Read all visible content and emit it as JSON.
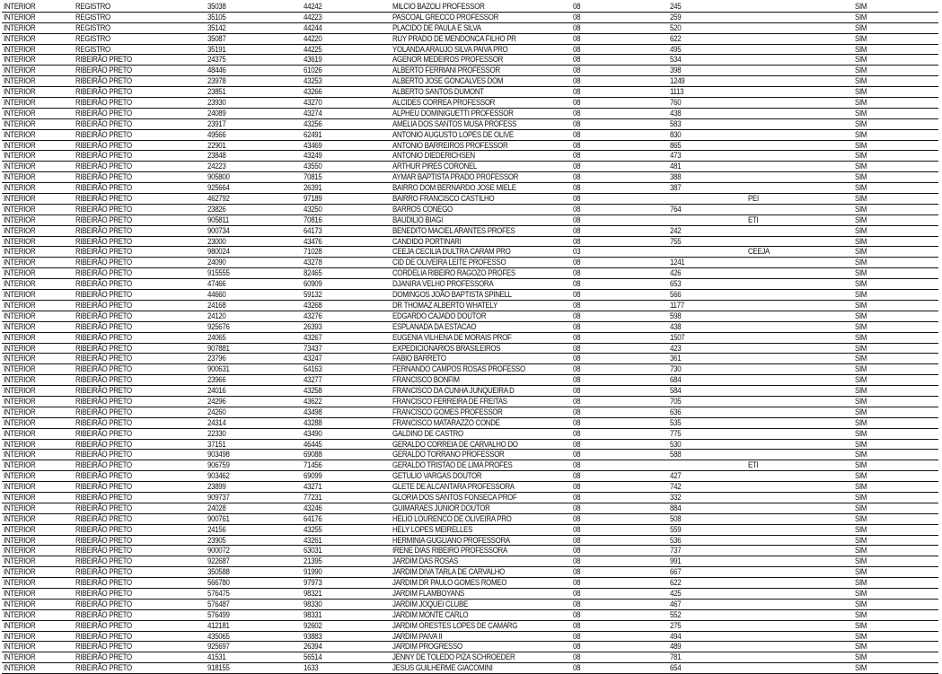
{
  "columns_count": 9,
  "rows": [
    [
      "INTERIOR",
      "REGISTRO",
      "35038",
      "44242",
      "MILCIO BAZOLI PROFESSOR",
      "08",
      "245",
      "",
      "SIM"
    ],
    [
      "INTERIOR",
      "REGISTRO",
      "35105",
      "44223",
      "PASCOAL GRECCO PROFESSOR",
      "08",
      "259",
      "",
      "SIM"
    ],
    [
      "INTERIOR",
      "REGISTRO",
      "35142",
      "44244",
      "PLACIDO DE PAULA E SILVA",
      "08",
      "520",
      "",
      "SIM"
    ],
    [
      "INTERIOR",
      "REGISTRO",
      "35087",
      "44220",
      "RUY PRADO DE MENDONCA FILHO PR",
      "08",
      "622",
      "",
      "SIM"
    ],
    [
      "INTERIOR",
      "REGISTRO",
      "35191",
      "44225",
      "YOLANDA ARAUJO SILVA PAIVA PRO",
      "08",
      "495",
      "",
      "SIM"
    ],
    [
      "INTERIOR",
      "RIBEIRÃO PRETO",
      "24375",
      "43619",
      "AGENOR MEDEIROS PROFESSOR",
      "08",
      "534",
      "",
      "SIM"
    ],
    [
      "INTERIOR",
      "RIBEIRÃO PRETO",
      "48446",
      "61026",
      "ALBERTO FERRIANI PROFESSOR",
      "08",
      "398",
      "",
      "SIM"
    ],
    [
      "INTERIOR",
      "RIBEIRÃO PRETO",
      "23978",
      "43253",
      "ALBERTO JOSE GONCALVES DOM",
      "08",
      "1249",
      "",
      "SIM"
    ],
    [
      "INTERIOR",
      "RIBEIRÃO PRETO",
      "23851",
      "43266",
      "ALBERTO SANTOS DUMONT",
      "08",
      "1113",
      "",
      "SIM"
    ],
    [
      "INTERIOR",
      "RIBEIRÃO PRETO",
      "23930",
      "43270",
      "ALCIDES CORREA PROFESSOR",
      "08",
      "760",
      "",
      "SIM"
    ],
    [
      "INTERIOR",
      "RIBEIRÃO PRETO",
      "24089",
      "43274",
      "ALPHEU DOMINIGUETTI PROFESSOR",
      "08",
      "438",
      "",
      "SIM"
    ],
    [
      "INTERIOR",
      "RIBEIRÃO PRETO",
      "23917",
      "43256",
      "AMELIA DOS SANTOS MUSA PROFESS",
      "08",
      "583",
      "",
      "SIM"
    ],
    [
      "INTERIOR",
      "RIBEIRÃO PRETO",
      "49566",
      "62491",
      "ANTONIO AUGUSTO LOPES DE OLIVE",
      "08",
      "830",
      "",
      "SIM"
    ],
    [
      "INTERIOR",
      "RIBEIRÃO PRETO",
      "22901",
      "43469",
      "ANTONIO BARREIROS PROFESSOR",
      "08",
      "865",
      "",
      "SIM"
    ],
    [
      "INTERIOR",
      "RIBEIRÃO PRETO",
      "23848",
      "43249",
      "ANTONIO DIEDERICHSEN",
      "08",
      "473",
      "",
      "SIM"
    ],
    [
      "INTERIOR",
      "RIBEIRÃO PRETO",
      "24223",
      "43550",
      "ARTHUR PIRES CORONEL",
      "08",
      "481",
      "",
      "SIM"
    ],
    [
      "INTERIOR",
      "RIBEIRÃO PRETO",
      "905800",
      "70815",
      "AYMAR BAPTISTA PRADO PROFESSOR",
      "08",
      "388",
      "",
      "SIM"
    ],
    [
      "INTERIOR",
      "RIBEIRÃO PRETO",
      "925664",
      "26391",
      "BAIRRO DOM BERNARDO JOSE MIELE",
      "08",
      "387",
      "",
      "SIM"
    ],
    [
      "INTERIOR",
      "RIBEIRÃO PRETO",
      "462792",
      "97189",
      "BAIRRO FRANCISCO CASTILHO",
      "08",
      "",
      "PEI",
      "SIM"
    ],
    [
      "INTERIOR",
      "RIBEIRÃO PRETO",
      "23826",
      "43250",
      "BARROS CONEGO",
      "08",
      "764",
      "",
      "SIM"
    ],
    [
      "INTERIOR",
      "RIBEIRÃO PRETO",
      "905811",
      "70816",
      "BAUDILIO BIAGI",
      "08",
      "",
      "ETI",
      "SIM"
    ],
    [
      "INTERIOR",
      "RIBEIRÃO PRETO",
      "900734",
      "64173",
      "BENEDITO MACIEL ARANTES PROFES",
      "08",
      "242",
      "",
      "SIM"
    ],
    [
      "INTERIOR",
      "RIBEIRÃO PRETO",
      "23000",
      "43476",
      "CANDIDO PORTINARI",
      "08",
      "755",
      "",
      "SIM"
    ],
    [
      "INTERIOR",
      "RIBEIRÃO PRETO",
      "980024",
      "71028",
      "CEEJA CECILIA DULTRA CARAM PRO",
      "03",
      "",
      "CEEJA",
      "SIM"
    ],
    [
      "INTERIOR",
      "RIBEIRÃO PRETO",
      "24090",
      "43278",
      "CID DE OLIVEIRA LEITE PROFESSO",
      "08",
      "1241",
      "",
      "SIM"
    ],
    [
      "INTERIOR",
      "RIBEIRÃO PRETO",
      "915555",
      "82465",
      "CORDELIA RIBEIRO RAGOZO PROFES",
      "08",
      "426",
      "",
      "SIM"
    ],
    [
      "INTERIOR",
      "RIBEIRÃO PRETO",
      "47466",
      "60909",
      "DJANIRA VELHO PROFESSORA",
      "08",
      "653",
      "",
      "SIM"
    ],
    [
      "INTERIOR",
      "RIBEIRÃO PRETO",
      "44660",
      "59132",
      "DOMINGOS JOÃO BAPTISTA SPINELL",
      "08",
      "566",
      "",
      "SIM"
    ],
    [
      "INTERIOR",
      "RIBEIRÃO PRETO",
      "24168",
      "43268",
      "DR THOMAZ ALBERTO WHATELY",
      "08",
      "1177",
      "",
      "SIM"
    ],
    [
      "INTERIOR",
      "RIBEIRÃO PRETO",
      "24120",
      "43276",
      "EDGARDO CAJADO DOUTOR",
      "08",
      "598",
      "",
      "SIM"
    ],
    [
      "INTERIOR",
      "RIBEIRÃO PRETO",
      "925676",
      "26393",
      "ESPLANADA DA ESTACAO",
      "08",
      "438",
      "",
      "SIM"
    ],
    [
      "INTERIOR",
      "RIBEIRÃO PRETO",
      "24065",
      "43267",
      "EUGENIA VILHENA DE MORAIS PROF",
      "08",
      "1507",
      "",
      "SIM"
    ],
    [
      "INTERIOR",
      "RIBEIRÃO PRETO",
      "907881",
      "73437",
      "EXPEDICIONARIOS BRASILEIROS",
      "08",
      "423",
      "",
      "SIM"
    ],
    [
      "INTERIOR",
      "RIBEIRÃO PRETO",
      "23796",
      "43247",
      "FABIO BARRETO",
      "08",
      "361",
      "",
      "SIM"
    ],
    [
      "INTERIOR",
      "RIBEIRÃO PRETO",
      "900631",
      "64163",
      "FERNANDO CAMPOS ROSAS PROFESSO",
      "08",
      "730",
      "",
      "SIM"
    ],
    [
      "INTERIOR",
      "RIBEIRÃO PRETO",
      "23966",
      "43277",
      "FRANCISCO BONFIM",
      "08",
      "684",
      "",
      "SIM"
    ],
    [
      "INTERIOR",
      "RIBEIRÃO PRETO",
      "24016",
      "43258",
      "FRANCISCO DA CUNHA JUNQUEIRA D",
      "08",
      "584",
      "",
      "SIM"
    ],
    [
      "INTERIOR",
      "RIBEIRÃO PRETO",
      "24296",
      "43622",
      "FRANCISCO FERREIRA DE FREITAS",
      "08",
      "705",
      "",
      "SIM"
    ],
    [
      "INTERIOR",
      "RIBEIRÃO PRETO",
      "24260",
      "43498",
      "FRANCISCO GOMES PROFESSOR",
      "08",
      "636",
      "",
      "SIM"
    ],
    [
      "INTERIOR",
      "RIBEIRÃO PRETO",
      "24314",
      "43288",
      "FRANCISCO MATARAZZO CONDE",
      "08",
      "535",
      "",
      "SIM"
    ],
    [
      "INTERIOR",
      "RIBEIRÃO PRETO",
      "22330",
      "43490",
      "GALDINO DE CASTRO",
      "08",
      "775",
      "",
      "SIM"
    ],
    [
      "INTERIOR",
      "RIBEIRÃO PRETO",
      "37151",
      "46445",
      "GERALDO CORREIA DE CARVALHO DO",
      "08",
      "530",
      "",
      "SIM"
    ],
    [
      "INTERIOR",
      "RIBEIRÃO PRETO",
      "903498",
      "69088",
      "GERALDO TORRANO PROFESSOR",
      "08",
      "588",
      "",
      "SIM"
    ],
    [
      "INTERIOR",
      "RIBEIRÃO PRETO",
      "906759",
      "71456",
      "GERALDO TRISTAO DE LIMA PROFES",
      "08",
      "",
      "ETI",
      "SIM"
    ],
    [
      "INTERIOR",
      "RIBEIRÃO PRETO",
      "903462",
      "69099",
      "GETULIO VARGAS DOUTOR",
      "08",
      "427",
      "",
      "SIM"
    ],
    [
      "INTERIOR",
      "RIBEIRÃO PRETO",
      "23899",
      "43271",
      "GLETE DE ALCANTARA PROFESSORA",
      "08",
      "742",
      "",
      "SIM"
    ],
    [
      "INTERIOR",
      "RIBEIRÃO PRETO",
      "909737",
      "77231",
      "GLORIA DOS SANTOS FONSECA PROF",
      "08",
      "332",
      "",
      "SIM"
    ],
    [
      "INTERIOR",
      "RIBEIRÃO PRETO",
      "24028",
      "43246",
      "GUIMARAES JUNIOR DOUTOR",
      "08",
      "884",
      "",
      "SIM"
    ],
    [
      "INTERIOR",
      "RIBEIRÃO PRETO",
      "900761",
      "64176",
      "HELIO LOURENCO DE OLIVEIRA PRO",
      "08",
      "508",
      "",
      "SIM"
    ],
    [
      "INTERIOR",
      "RIBEIRÃO PRETO",
      "24156",
      "43255",
      "HELY LOPES MEIRELLES",
      "08",
      "559",
      "",
      "SIM"
    ],
    [
      "INTERIOR",
      "RIBEIRÃO PRETO",
      "23905",
      "43261",
      "HERMINIA GUGLIANO PROFESSORA",
      "08",
      "536",
      "",
      "SIM"
    ],
    [
      "INTERIOR",
      "RIBEIRÃO PRETO",
      "900072",
      "63031",
      "IRENE DIAS RIBEIRO PROFESSORA",
      "08",
      "737",
      "",
      "SIM"
    ],
    [
      "INTERIOR",
      "RIBEIRÃO PRETO",
      "922687",
      "21395",
      "JARDIM DAS ROSAS",
      "08",
      "991",
      "",
      "SIM"
    ],
    [
      "INTERIOR",
      "RIBEIRÃO PRETO",
      "350588",
      "91990",
      "JARDIM DIVA TARLA DE CARVALHO",
      "08",
      "667",
      "",
      "SIM"
    ],
    [
      "INTERIOR",
      "RIBEIRÃO PRETO",
      "566780",
      "97973",
      "JARDIM DR PAULO GOMES ROMEO",
      "08",
      "622",
      "",
      "SIM"
    ],
    [
      "INTERIOR",
      "RIBEIRÃO PRETO",
      "576475",
      "98321",
      "JARDIM FLAMBOYANS",
      "08",
      "425",
      "",
      "SIM"
    ],
    [
      "INTERIOR",
      "RIBEIRÃO PRETO",
      "576487",
      "98330",
      "JARDIM JOQUEI CLUBE",
      "08",
      "467",
      "",
      "SIM"
    ],
    [
      "INTERIOR",
      "RIBEIRÃO PRETO",
      "576499",
      "98331",
      "JARDIM MONTE CARLO",
      "08",
      "552",
      "",
      "SIM"
    ],
    [
      "INTERIOR",
      "RIBEIRÃO PRETO",
      "412181",
      "92602",
      "JARDIM ORESTES LOPES DE CAMARG",
      "08",
      "275",
      "",
      "SIM"
    ],
    [
      "INTERIOR",
      "RIBEIRÃO PRETO",
      "435065",
      "93883",
      "JARDIM PAIVA II",
      "08",
      "494",
      "",
      "SIM"
    ],
    [
      "INTERIOR",
      "RIBEIRÃO PRETO",
      "925697",
      "26394",
      "JARDIM PROGRESSO",
      "08",
      "489",
      "",
      "SIM"
    ],
    [
      "INTERIOR",
      "RIBEIRÃO PRETO",
      "41531",
      "56514",
      "JENNY DE TOLEDO PIZA SCHROEDER",
      "08",
      "781",
      "",
      "SIM"
    ],
    [
      "INTERIOR",
      "RIBEIRÃO PRETO",
      "918155",
      "1633",
      "JESUS GUILHERME GIACOMINI",
      "08",
      "654",
      "",
      "SIM"
    ]
  ]
}
